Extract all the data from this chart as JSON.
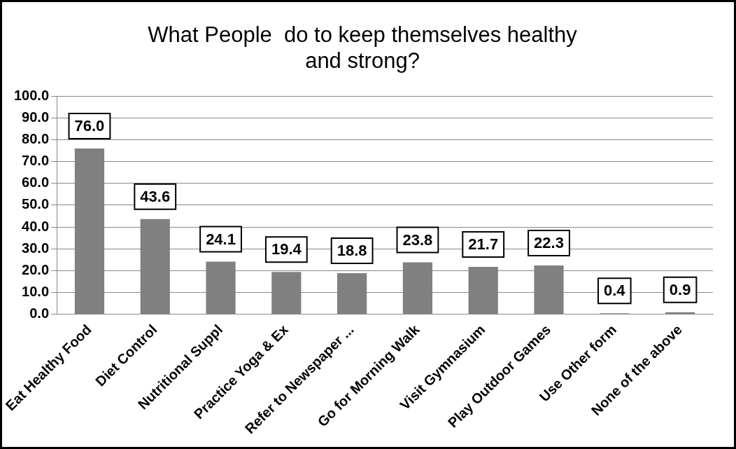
{
  "chart_data": {
    "type": "bar",
    "title": [
      "What People  do to keep themselves healthy",
      "and strong?"
    ],
    "categories": [
      "Eat Healthy Food",
      "Diet Control",
      "Nutritional Suppl",
      "Practice Yoga & Ex",
      "Refer to Newspaper ...",
      "Go for Morning Walk",
      "Visit Gymnasium",
      "Play Outdoor Games",
      "Use Other form",
      "None of the above"
    ],
    "values": [
      76.0,
      43.6,
      24.1,
      19.4,
      18.8,
      23.8,
      21.7,
      22.3,
      0.4,
      0.9
    ],
    "value_labels": [
      "76.0",
      "43.6",
      "24.1",
      "19.4",
      "18.8",
      "23.8",
      "21.7",
      "22.3",
      "0.4",
      "0.9"
    ],
    "color": "#808080",
    "ylim": [
      0,
      100
    ],
    "yticks": [
      {
        "value": 0,
        "label": "0.0"
      },
      {
        "value": 10,
        "label": "10.0"
      },
      {
        "value": 20,
        "label": "20.0"
      },
      {
        "value": 30,
        "label": "30.0"
      },
      {
        "value": 40,
        "label": "40.0"
      },
      {
        "value": 50,
        "label": "50.0"
      },
      {
        "value": 60,
        "label": "60.0"
      },
      {
        "value": 70,
        "label": "70.0"
      },
      {
        "value": 80,
        "label": "80.0"
      },
      {
        "value": 90,
        "label": "90.0"
      },
      {
        "value": 100,
        "label": "100.0"
      }
    ],
    "grid": "y"
  }
}
